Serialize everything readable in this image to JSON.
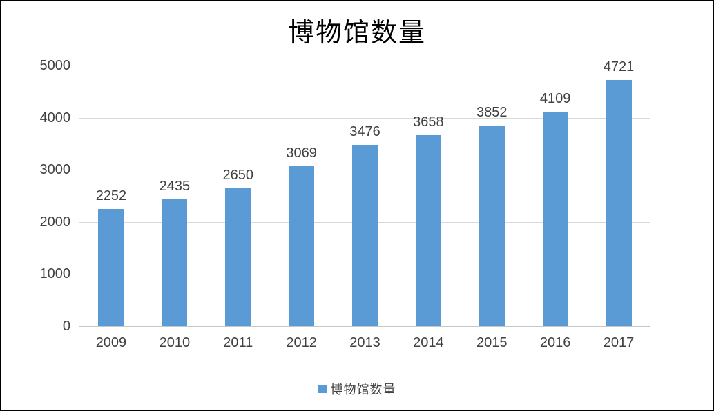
{
  "chart_data": {
    "type": "bar",
    "title": "博物馆数量",
    "categories": [
      "2009",
      "2010",
      "2011",
      "2012",
      "2013",
      "2014",
      "2015",
      "2016",
      "2017"
    ],
    "series": [
      {
        "name": "博物馆数量",
        "values": [
          2252,
          2435,
          2650,
          3069,
          3476,
          3658,
          3852,
          4109,
          4721
        ]
      }
    ],
    "xlabel": "",
    "ylabel": "",
    "ylim": [
      0,
      5000
    ],
    "ytick_step": 1000,
    "ytick_labels": [
      "0",
      "1000",
      "2000",
      "3000",
      "4000",
      "5000"
    ],
    "grid": true,
    "data_labels": true,
    "legend_position": "bottom",
    "colors": {
      "bar": "#5b9bd5",
      "gridline": "#d9d9d9",
      "axis_line": "#c6c6c6",
      "label_text": "#404040",
      "title_text": "#000000"
    }
  }
}
